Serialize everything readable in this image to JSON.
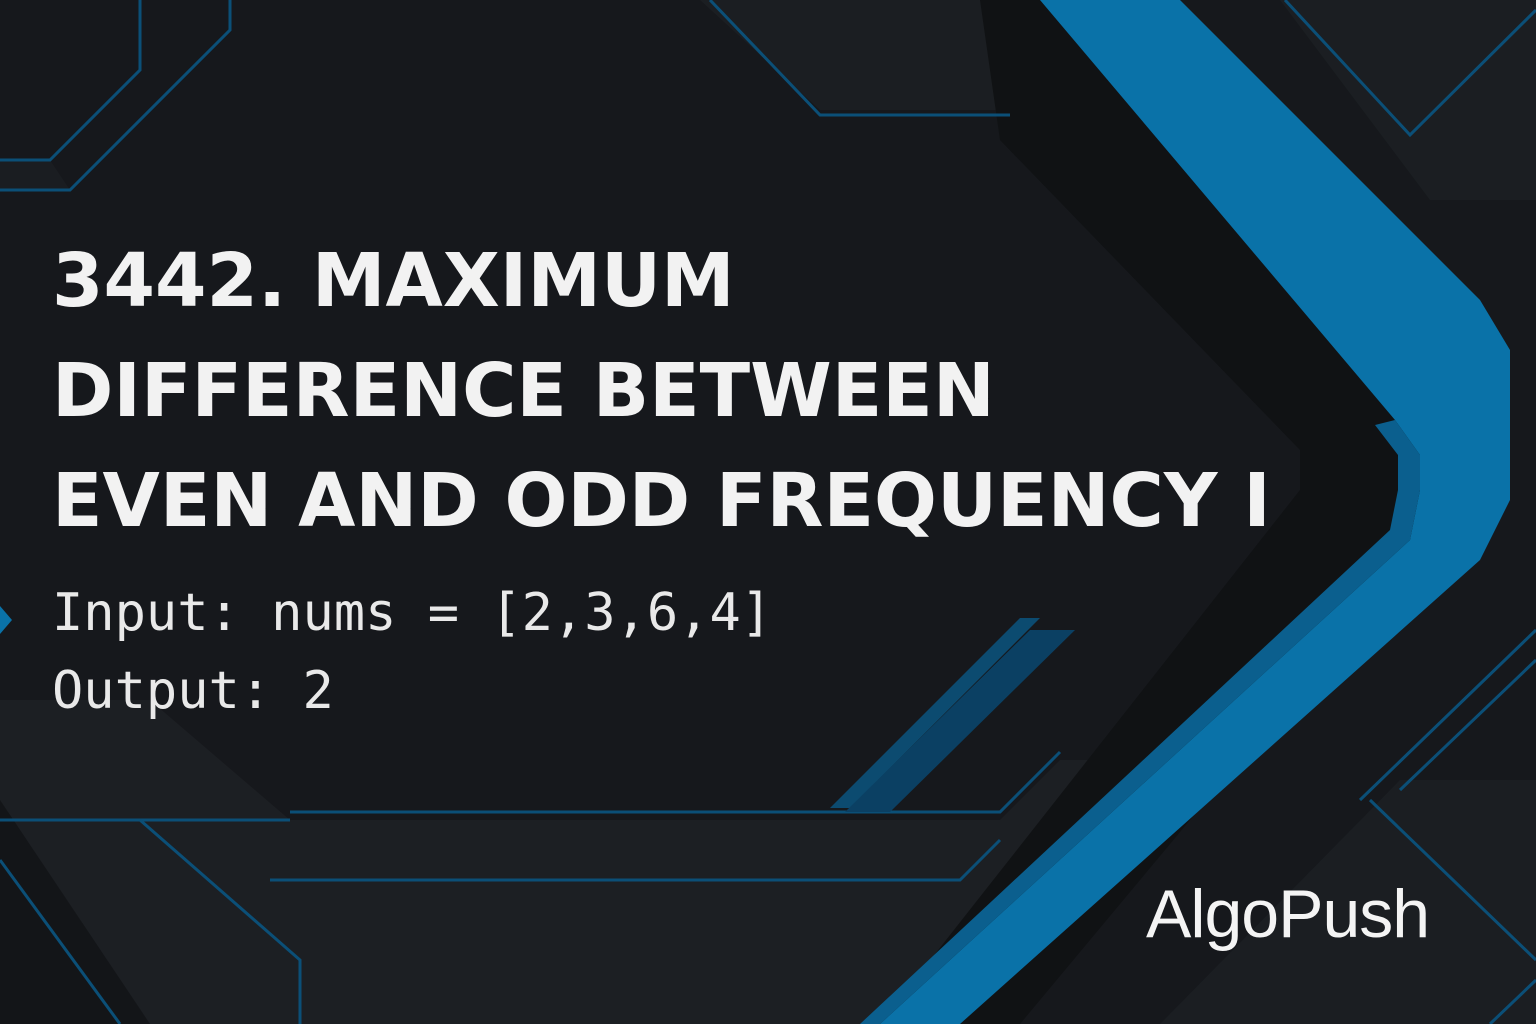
{
  "title": {
    "line1": "3442. MAXIMUM",
    "line2": "DIFFERENCE BETWEEN",
    "line3": "EVEN AND ODD FREQUENCY I"
  },
  "example": {
    "input_label": "Input:",
    "input_value": "nums = [2,3,6,4]",
    "output_label": "Output:",
    "output_value": "2"
  },
  "brand": {
    "name": "AlgoPush"
  },
  "colors": {
    "background": "#16181c",
    "panel": "#1c1f24",
    "accent_blue": "#0a72a8",
    "line_blue": "#0b4f77",
    "text": "#f2f2f2"
  }
}
